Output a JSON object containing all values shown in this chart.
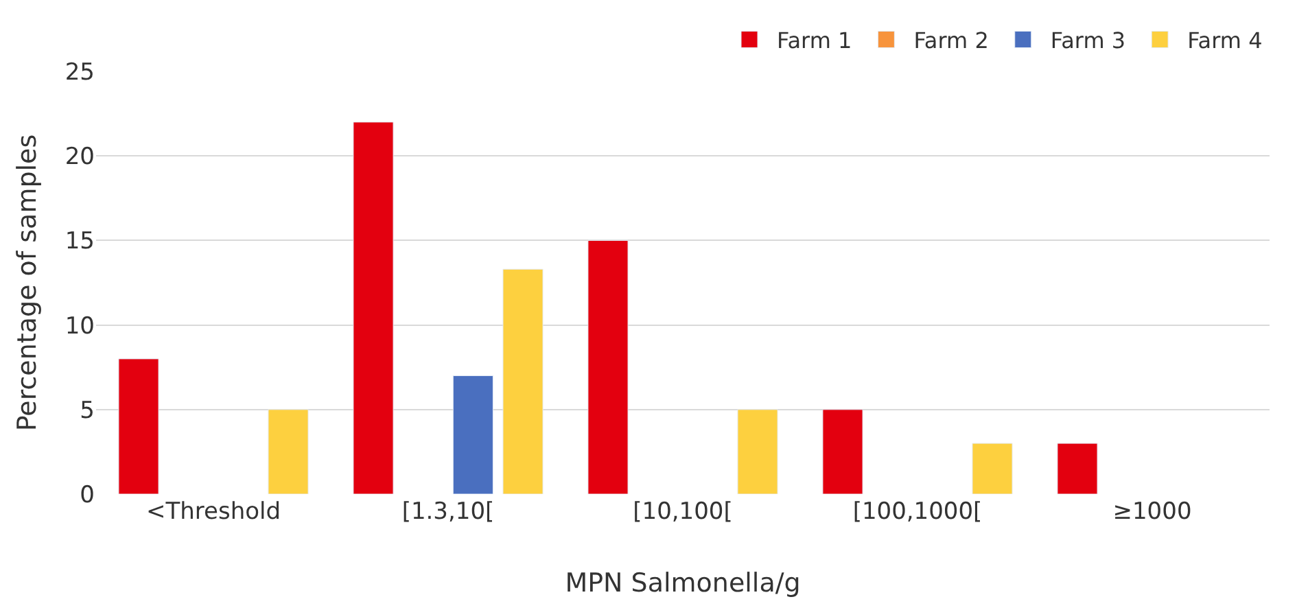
{
  "chart_data": {
    "type": "bar",
    "xlabel": "MPN Salmonella/g",
    "ylabel": "Percentage of samples",
    "categories": [
      "<Threshold",
      "[1.3,10[",
      "[10,100[",
      "[100,1000[",
      "≥1000"
    ],
    "series": [
      {
        "name": "Farm 1",
        "color": "#e3000f",
        "values": [
          8,
          22,
          15,
          5,
          3
        ]
      },
      {
        "name": "Farm 2",
        "color": "#f7943c",
        "values": [
          null,
          null,
          null,
          null,
          null
        ]
      },
      {
        "name": "Farm 3",
        "color": "#4a6fbf",
        "values": [
          null,
          7,
          null,
          null,
          null
        ]
      },
      {
        "name": "Farm 4",
        "color": "#fdd03f",
        "values": [
          5,
          13.3,
          5,
          3,
          null
        ]
      }
    ],
    "ylim": [
      0,
      25
    ],
    "yticks": [
      0,
      5,
      10,
      15,
      20,
      25
    ],
    "grid": "y",
    "legend": "top right"
  }
}
